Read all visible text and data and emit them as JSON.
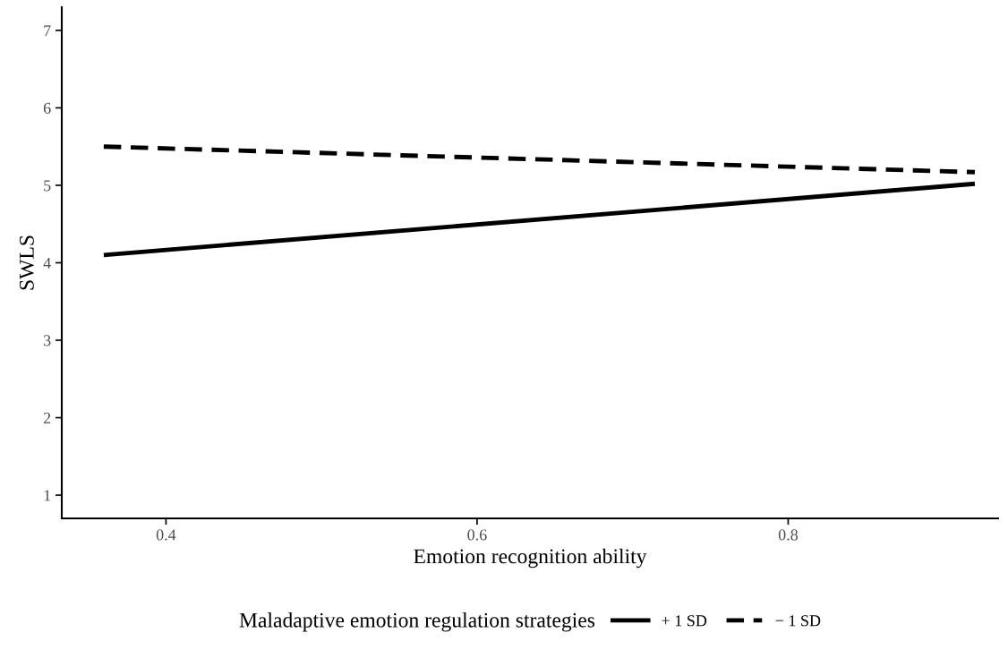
{
  "chart_data": {
    "type": "line",
    "xlabel": "Emotion recognition ability",
    "ylabel": "SWLS",
    "legend_title": "Maladaptive emotion regulation strategies",
    "x": [
      0.36,
      0.92
    ],
    "series": [
      {
        "name": "+ 1 SD",
        "color": "#000000",
        "values": [
          4.1,
          5.02
        ],
        "line_style": "solid"
      },
      {
        "name": "− 1 SD",
        "color": "#000000",
        "values": [
          5.5,
          5.17
        ],
        "line_style": "dashed"
      }
    ],
    "xlim": [
      0.333,
      0.935
    ],
    "ylim": [
      0.7,
      7.3
    ],
    "xticks": [
      0.4,
      0.6,
      0.8
    ],
    "yticks": [
      1,
      2,
      3,
      4,
      5,
      6,
      7
    ],
    "grid": false,
    "legend": "bottom",
    "marker": "none"
  }
}
